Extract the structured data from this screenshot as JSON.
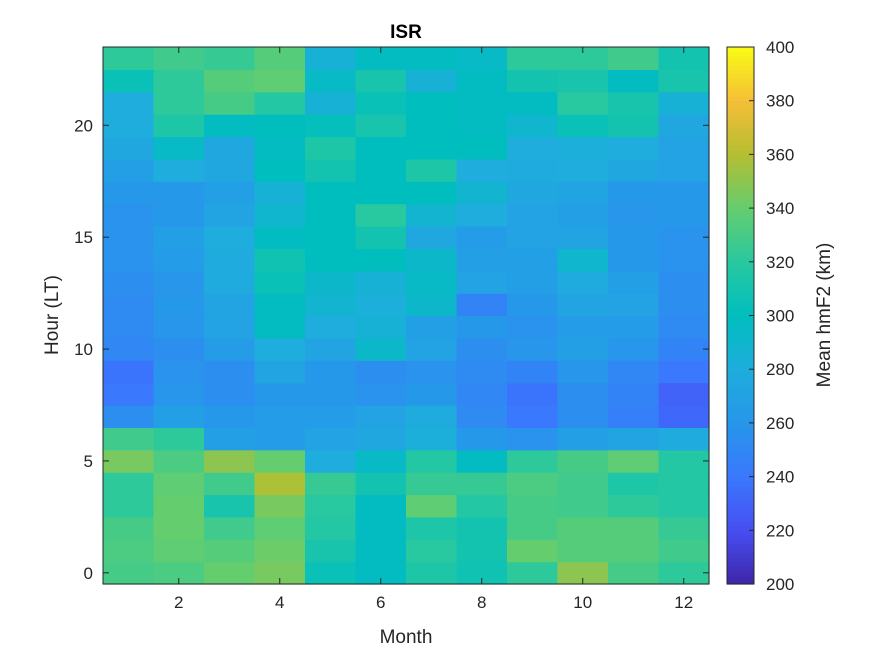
{
  "chart_data": {
    "type": "heatmap",
    "title": "ISR",
    "xlabel": "Month",
    "ylabel": "Hour (LT)",
    "colorbar_label": "Mean hmF2 (km)",
    "colormap": "parula",
    "clim": [
      200,
      400
    ],
    "xlim": [
      0.5,
      12.5
    ],
    "ylim": [
      -0.5,
      23.5
    ],
    "x": [
      1,
      2,
      3,
      4,
      5,
      6,
      7,
      8,
      9,
      10,
      11,
      12
    ],
    "y": [
      0,
      1,
      2,
      3,
      4,
      5,
      6,
      7,
      8,
      9,
      10,
      11,
      12,
      13,
      14,
      15,
      16,
      17,
      18,
      19,
      20,
      21,
      22,
      23
    ],
    "xticks": [
      "2",
      "4",
      "6",
      "8",
      "10",
      "12"
    ],
    "xtick_values": [
      2,
      4,
      6,
      8,
      10,
      12
    ],
    "yticks": [
      "0",
      "5",
      "10",
      "15",
      "20"
    ],
    "ytick_values": [
      0,
      5,
      10,
      15,
      20
    ],
    "cticks": [
      "200",
      "220",
      "240",
      "260",
      "280",
      "300",
      "320",
      "340",
      "360",
      "380",
      "400"
    ],
    "ctick_values": [
      200,
      220,
      240,
      260,
      280,
      300,
      320,
      340,
      360,
      380,
      400
    ],
    "grid": false,
    "values": [
      [
        330,
        332,
        340,
        345,
        305,
        298,
        315,
        308,
        322,
        350,
        330,
        322
      ],
      [
        332,
        338,
        335,
        342,
        312,
        298,
        320,
        310,
        340,
        335,
        335,
        328
      ],
      [
        330,
        340,
        328,
        338,
        318,
        298,
        315,
        310,
        330,
        335,
        335,
        325
      ],
      [
        322,
        340,
        312,
        345,
        320,
        298,
        338,
        318,
        330,
        328,
        322,
        318
      ],
      [
        322,
        338,
        328,
        358,
        325,
        310,
        325,
        325,
        332,
        328,
        315,
        318
      ],
      [
        345,
        332,
        350,
        340,
        280,
        295,
        318,
        298,
        322,
        330,
        338,
        318
      ],
      [
        328,
        322,
        268,
        265,
        270,
        275,
        282,
        262,
        258,
        268,
        272,
        278
      ],
      [
        255,
        268,
        262,
        265,
        265,
        270,
        278,
        252,
        240,
        255,
        245,
        232
      ],
      [
        240,
        260,
        255,
        262,
        262,
        258,
        262,
        250,
        238,
        255,
        248,
        230
      ],
      [
        238,
        258,
        255,
        272,
        262,
        255,
        258,
        252,
        248,
        260,
        250,
        240
      ],
      [
        250,
        255,
        265,
        280,
        272,
        292,
        270,
        255,
        260,
        268,
        260,
        248
      ],
      [
        252,
        260,
        270,
        298,
        280,
        285,
        268,
        262,
        258,
        265,
        265,
        252
      ],
      [
        252,
        262,
        272,
        298,
        288,
        282,
        292,
        248,
        262,
        272,
        270,
        255
      ],
      [
        255,
        260,
        278,
        305,
        292,
        285,
        295,
        270,
        268,
        278,
        268,
        255
      ],
      [
        258,
        265,
        278,
        308,
        300,
        300,
        292,
        268,
        268,
        290,
        262,
        258
      ],
      [
        258,
        268,
        280,
        298,
        300,
        310,
        275,
        265,
        270,
        272,
        262,
        258
      ],
      [
        258,
        262,
        272,
        290,
        300,
        320,
        288,
        280,
        270,
        268,
        260,
        262
      ],
      [
        262,
        262,
        268,
        285,
        300,
        300,
        300,
        288,
        275,
        272,
        262,
        262
      ],
      [
        268,
        280,
        275,
        300,
        310,
        300,
        315,
        280,
        278,
        280,
        275,
        270
      ],
      [
        275,
        295,
        275,
        298,
        315,
        300,
        300,
        300,
        280,
        282,
        280,
        270
      ],
      [
        280,
        315,
        298,
        300,
        302,
        312,
        300,
        298,
        290,
        305,
        310,
        275
      ],
      [
        280,
        322,
        330,
        318,
        285,
        305,
        300,
        298,
        298,
        320,
        312,
        285
      ],
      [
        305,
        322,
        335,
        338,
        295,
        312,
        285,
        298,
        310,
        312,
        298,
        312
      ],
      [
        322,
        328,
        325,
        335,
        285,
        298,
        298,
        295,
        322,
        322,
        328,
        310
      ]
    ]
  }
}
